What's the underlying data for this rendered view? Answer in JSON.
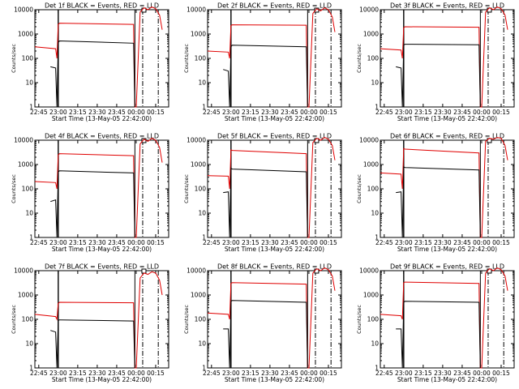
{
  "figure": {
    "xlabel": "Start Time (13-May-05 22:42:00)",
    "ylabel": "Counts/sec",
    "x_tick_labels": [
      "22:45",
      "23:00",
      "23:15",
      "23:30",
      "23:45",
      "00:00",
      "00:15"
    ],
    "y_tick_labels": [
      "1",
      "10",
      "100",
      "1000",
      "10000"
    ],
    "colors": {
      "red_series": "#e00000",
      "black_series": "#000000",
      "axes": "#000000",
      "background": "#ffffff"
    }
  },
  "chart_data": [
    {
      "type": "line",
      "title": "Det 1f BLACK = Events, RED = LLD",
      "xlabel": "Start Time (13-May-05 22:42:00)",
      "ylabel": "Counts/sec",
      "y_scale": "log",
      "ylim": [
        1,
        10000
      ],
      "xlim": [
        "22:42",
        "00:25"
      ],
      "grid": false,
      "series": [
        {
          "name": "LLD",
          "color": "#e00000",
          "x": [
            "22:42",
            "22:58",
            "22:59",
            "23:00",
            "23:01",
            "23:58",
            "23:59",
            "00:00",
            "00:03",
            "00:06",
            "00:09",
            "00:12",
            "00:15",
            "00:18",
            "00:20"
          ],
          "values": [
            300,
            250,
            100,
            2500,
            2800,
            2500,
            1,
            1,
            8000,
            12000,
            10000,
            13000,
            11000,
            6000,
            1500
          ]
        },
        {
          "name": "Events",
          "color": "#000000",
          "x": [
            "22:54",
            "22:58",
            "22:59",
            "23:00",
            "23:01",
            "23:58",
            "23:59"
          ],
          "values": [
            45,
            40,
            1,
            450,
            520,
            420,
            1
          ]
        }
      ]
    },
    {
      "type": "line",
      "title": "Det 2f BLACK = Events, RED = LLD",
      "xlabel": "Start Time (13-May-05 22:42:00)",
      "ylabel": "Counts/sec",
      "y_scale": "log",
      "ylim": [
        1,
        10000
      ],
      "xlim": [
        "22:42",
        "00:25"
      ],
      "grid": false,
      "series": [
        {
          "name": "LLD",
          "color": "#e00000",
          "x": [
            "22:42",
            "22:58",
            "22:59",
            "23:00",
            "23:01",
            "23:58",
            "23:59",
            "00:00",
            "00:03",
            "00:06",
            "00:09",
            "00:12",
            "00:15",
            "00:18",
            "00:20"
          ],
          "values": [
            200,
            180,
            100,
            2200,
            2400,
            2300,
            1,
            1,
            7000,
            11000,
            9000,
            12000,
            10000,
            5000,
            1200
          ]
        },
        {
          "name": "Events",
          "color": "#000000",
          "x": [
            "22:54",
            "22:58",
            "22:59",
            "23:00",
            "23:01",
            "23:58",
            "23:59"
          ],
          "values": [
            35,
            30,
            1,
            300,
            350,
            300,
            1
          ]
        }
      ]
    },
    {
      "type": "line",
      "title": "Det 3f BLACK = Events, RED = LLD",
      "xlabel": "Start Time (13-May-05 22:42:00)",
      "ylabel": "Counts/sec",
      "y_scale": "log",
      "ylim": [
        1,
        10000
      ],
      "xlim": [
        "22:42",
        "00:25"
      ],
      "grid": false,
      "series": [
        {
          "name": "LLD",
          "color": "#e00000",
          "x": [
            "22:42",
            "22:58",
            "22:59",
            "23:00",
            "23:01",
            "23:58",
            "23:59",
            "00:00",
            "00:03",
            "00:06",
            "00:09",
            "00:12",
            "00:15",
            "00:18",
            "00:20"
          ],
          "values": [
            250,
            220,
            100,
            1800,
            2000,
            1900,
            1,
            1,
            8000,
            12000,
            10000,
            13000,
            11000,
            6000,
            1500
          ]
        },
        {
          "name": "Events",
          "color": "#000000",
          "x": [
            "22:54",
            "22:58",
            "22:59",
            "23:00",
            "23:01",
            "23:58",
            "23:59"
          ],
          "values": [
            45,
            40,
            1,
            350,
            380,
            360,
            1
          ]
        }
      ]
    },
    {
      "type": "line",
      "title": "Det 4f BLACK = Events, RED = LLD",
      "xlabel": "Start Time (13-May-05 22:42:00)",
      "ylabel": "Counts/sec",
      "y_scale": "log",
      "ylim": [
        1,
        10000
      ],
      "xlim": [
        "22:42",
        "00:25"
      ],
      "grid": false,
      "series": [
        {
          "name": "LLD",
          "color": "#e00000",
          "x": [
            "22:42",
            "22:58",
            "22:59",
            "23:00",
            "23:01",
            "23:58",
            "23:59",
            "00:00",
            "00:03",
            "00:06",
            "00:09",
            "00:12",
            "00:15",
            "00:18",
            "00:20"
          ],
          "values": [
            200,
            180,
            100,
            2500,
            2800,
            2300,
            1,
            1,
            7000,
            11000,
            9000,
            12000,
            10000,
            5000,
            1200
          ]
        },
        {
          "name": "Events",
          "color": "#000000",
          "x": [
            "22:54",
            "22:58",
            "22:59",
            "23:00",
            "23:01",
            "23:58",
            "23:59"
          ],
          "values": [
            30,
            35,
            1,
            500,
            550,
            450,
            1
          ]
        }
      ]
    },
    {
      "type": "line",
      "title": "Det 5f BLACK = Events, RED = LLD",
      "xlabel": "Start Time (13-May-05 22:42:00)",
      "ylabel": "Counts/sec",
      "y_scale": "log",
      "ylim": [
        1,
        10000
      ],
      "xlim": [
        "22:42",
        "00:25"
      ],
      "grid": false,
      "series": [
        {
          "name": "LLD",
          "color": "#e00000",
          "x": [
            "22:42",
            "22:58",
            "22:59",
            "23:00",
            "23:01",
            "23:58",
            "23:59",
            "00:00",
            "00:03",
            "00:06",
            "00:09",
            "00:12",
            "00:15",
            "00:18",
            "00:20"
          ],
          "values": [
            350,
            330,
            100,
            4000,
            3800,
            2800,
            1,
            1,
            8000,
            12000,
            10000,
            13000,
            11000,
            6000,
            1500
          ]
        },
        {
          "name": "Events",
          "color": "#000000",
          "x": [
            "22:54",
            "22:58",
            "22:59",
            "23:00",
            "23:01",
            "23:58",
            "23:59"
          ],
          "values": [
            70,
            75,
            1,
            700,
            650,
            500,
            1
          ]
        }
      ]
    },
    {
      "type": "line",
      "title": "Det 6f BLACK = Events, RED = LLD",
      "xlabel": "Start Time (13-May-05 22:42:00)",
      "ylabel": "Counts/sec",
      "y_scale": "log",
      "ylim": [
        1,
        10000
      ],
      "xlim": [
        "22:42",
        "00:25"
      ],
      "grid": false,
      "series": [
        {
          "name": "LLD",
          "color": "#e00000",
          "x": [
            "22:42",
            "22:58",
            "22:59",
            "23:00",
            "23:01",
            "23:58",
            "23:59",
            "00:00",
            "00:03",
            "00:06",
            "00:09",
            "00:12",
            "00:15",
            "00:18",
            "00:20"
          ],
          "values": [
            450,
            400,
            100,
            4500,
            4300,
            3000,
            1,
            1,
            9000,
            12000,
            11000,
            13000,
            12000,
            6000,
            1500
          ]
        },
        {
          "name": "Events",
          "color": "#000000",
          "x": [
            "22:54",
            "22:58",
            "22:59",
            "23:00",
            "23:01",
            "23:58",
            "23:59"
          ],
          "values": [
            70,
            75,
            1,
            800,
            750,
            600,
            1
          ]
        }
      ]
    },
    {
      "type": "line",
      "title": "Det 7f BLACK = Events, RED = LLD",
      "xlabel": "Start Time (13-May-05 22:42:00)",
      "ylabel": "Counts/sec",
      "y_scale": "log",
      "ylim": [
        1,
        10000
      ],
      "xlim": [
        "22:42",
        "00:25"
      ],
      "grid": false,
      "series": [
        {
          "name": "LLD",
          "color": "#e00000",
          "x": [
            "22:42",
            "22:58",
            "22:59",
            "23:00",
            "23:01",
            "23:58",
            "23:59",
            "00:00",
            "00:03",
            "00:06",
            "00:09",
            "00:12",
            "00:15",
            "00:18",
            "00:20"
          ],
          "values": [
            160,
            130,
            100,
            450,
            500,
            480,
            1,
            1,
            5000,
            8000,
            7000,
            9000,
            8000,
            4000,
            1000
          ]
        },
        {
          "name": "Events",
          "color": "#000000",
          "x": [
            "22:54",
            "22:58",
            "22:59",
            "23:00",
            "23:01",
            "23:58",
            "23:59"
          ],
          "values": [
            35,
            30,
            1,
            90,
            95,
            85,
            1
          ]
        }
      ]
    },
    {
      "type": "line",
      "title": "Det 8f BLACK = Events, RED = LLD",
      "xlabel": "Start Time (13-May-05 22:42:00)",
      "ylabel": "Counts/sec",
      "y_scale": "log",
      "ylim": [
        1,
        10000
      ],
      "xlim": [
        "22:42",
        "00:25"
      ],
      "grid": false,
      "series": [
        {
          "name": "LLD",
          "color": "#e00000",
          "x": [
            "22:42",
            "22:58",
            "22:59",
            "23:00",
            "23:01",
            "23:58",
            "23:59",
            "00:00",
            "00:03",
            "00:06",
            "00:09",
            "00:12",
            "00:15",
            "00:18",
            "00:20"
          ],
          "values": [
            180,
            160,
            100,
            3000,
            3200,
            2800,
            1,
            1,
            8000,
            12000,
            10000,
            13000,
            11000,
            6000,
            1500
          ]
        },
        {
          "name": "Events",
          "color": "#000000",
          "x": [
            "22:54",
            "22:58",
            "22:59",
            "23:00",
            "23:01",
            "23:58",
            "23:59"
          ],
          "values": [
            40,
            40,
            1,
            550,
            600,
            500,
            1
          ]
        }
      ]
    },
    {
      "type": "line",
      "title": "Det 9f BLACK = Events, RED = LLD",
      "xlabel": "Start Time (13-May-05 22:42:00)",
      "ylabel": "Counts/sec",
      "y_scale": "log",
      "ylim": [
        1,
        10000
      ],
      "xlim": [
        "22:42",
        "00:25"
      ],
      "grid": false,
      "series": [
        {
          "name": "LLD",
          "color": "#e00000",
          "x": [
            "22:42",
            "22:58",
            "22:59",
            "23:00",
            "23:01",
            "23:58",
            "23:59",
            "00:00",
            "00:03",
            "00:06",
            "00:09",
            "00:12",
            "00:15",
            "00:18",
            "00:20"
          ],
          "values": [
            160,
            140,
            100,
            3200,
            3400,
            3000,
            1,
            1,
            8000,
            12000,
            10000,
            13000,
            11000,
            6000,
            1500
          ]
        },
        {
          "name": "Events",
          "color": "#000000",
          "x": [
            "22:54",
            "22:58",
            "22:59",
            "23:00",
            "23:01",
            "23:58",
            "23:59"
          ],
          "values": [
            40,
            40,
            1,
            500,
            550,
            500,
            1
          ]
        }
      ]
    }
  ]
}
